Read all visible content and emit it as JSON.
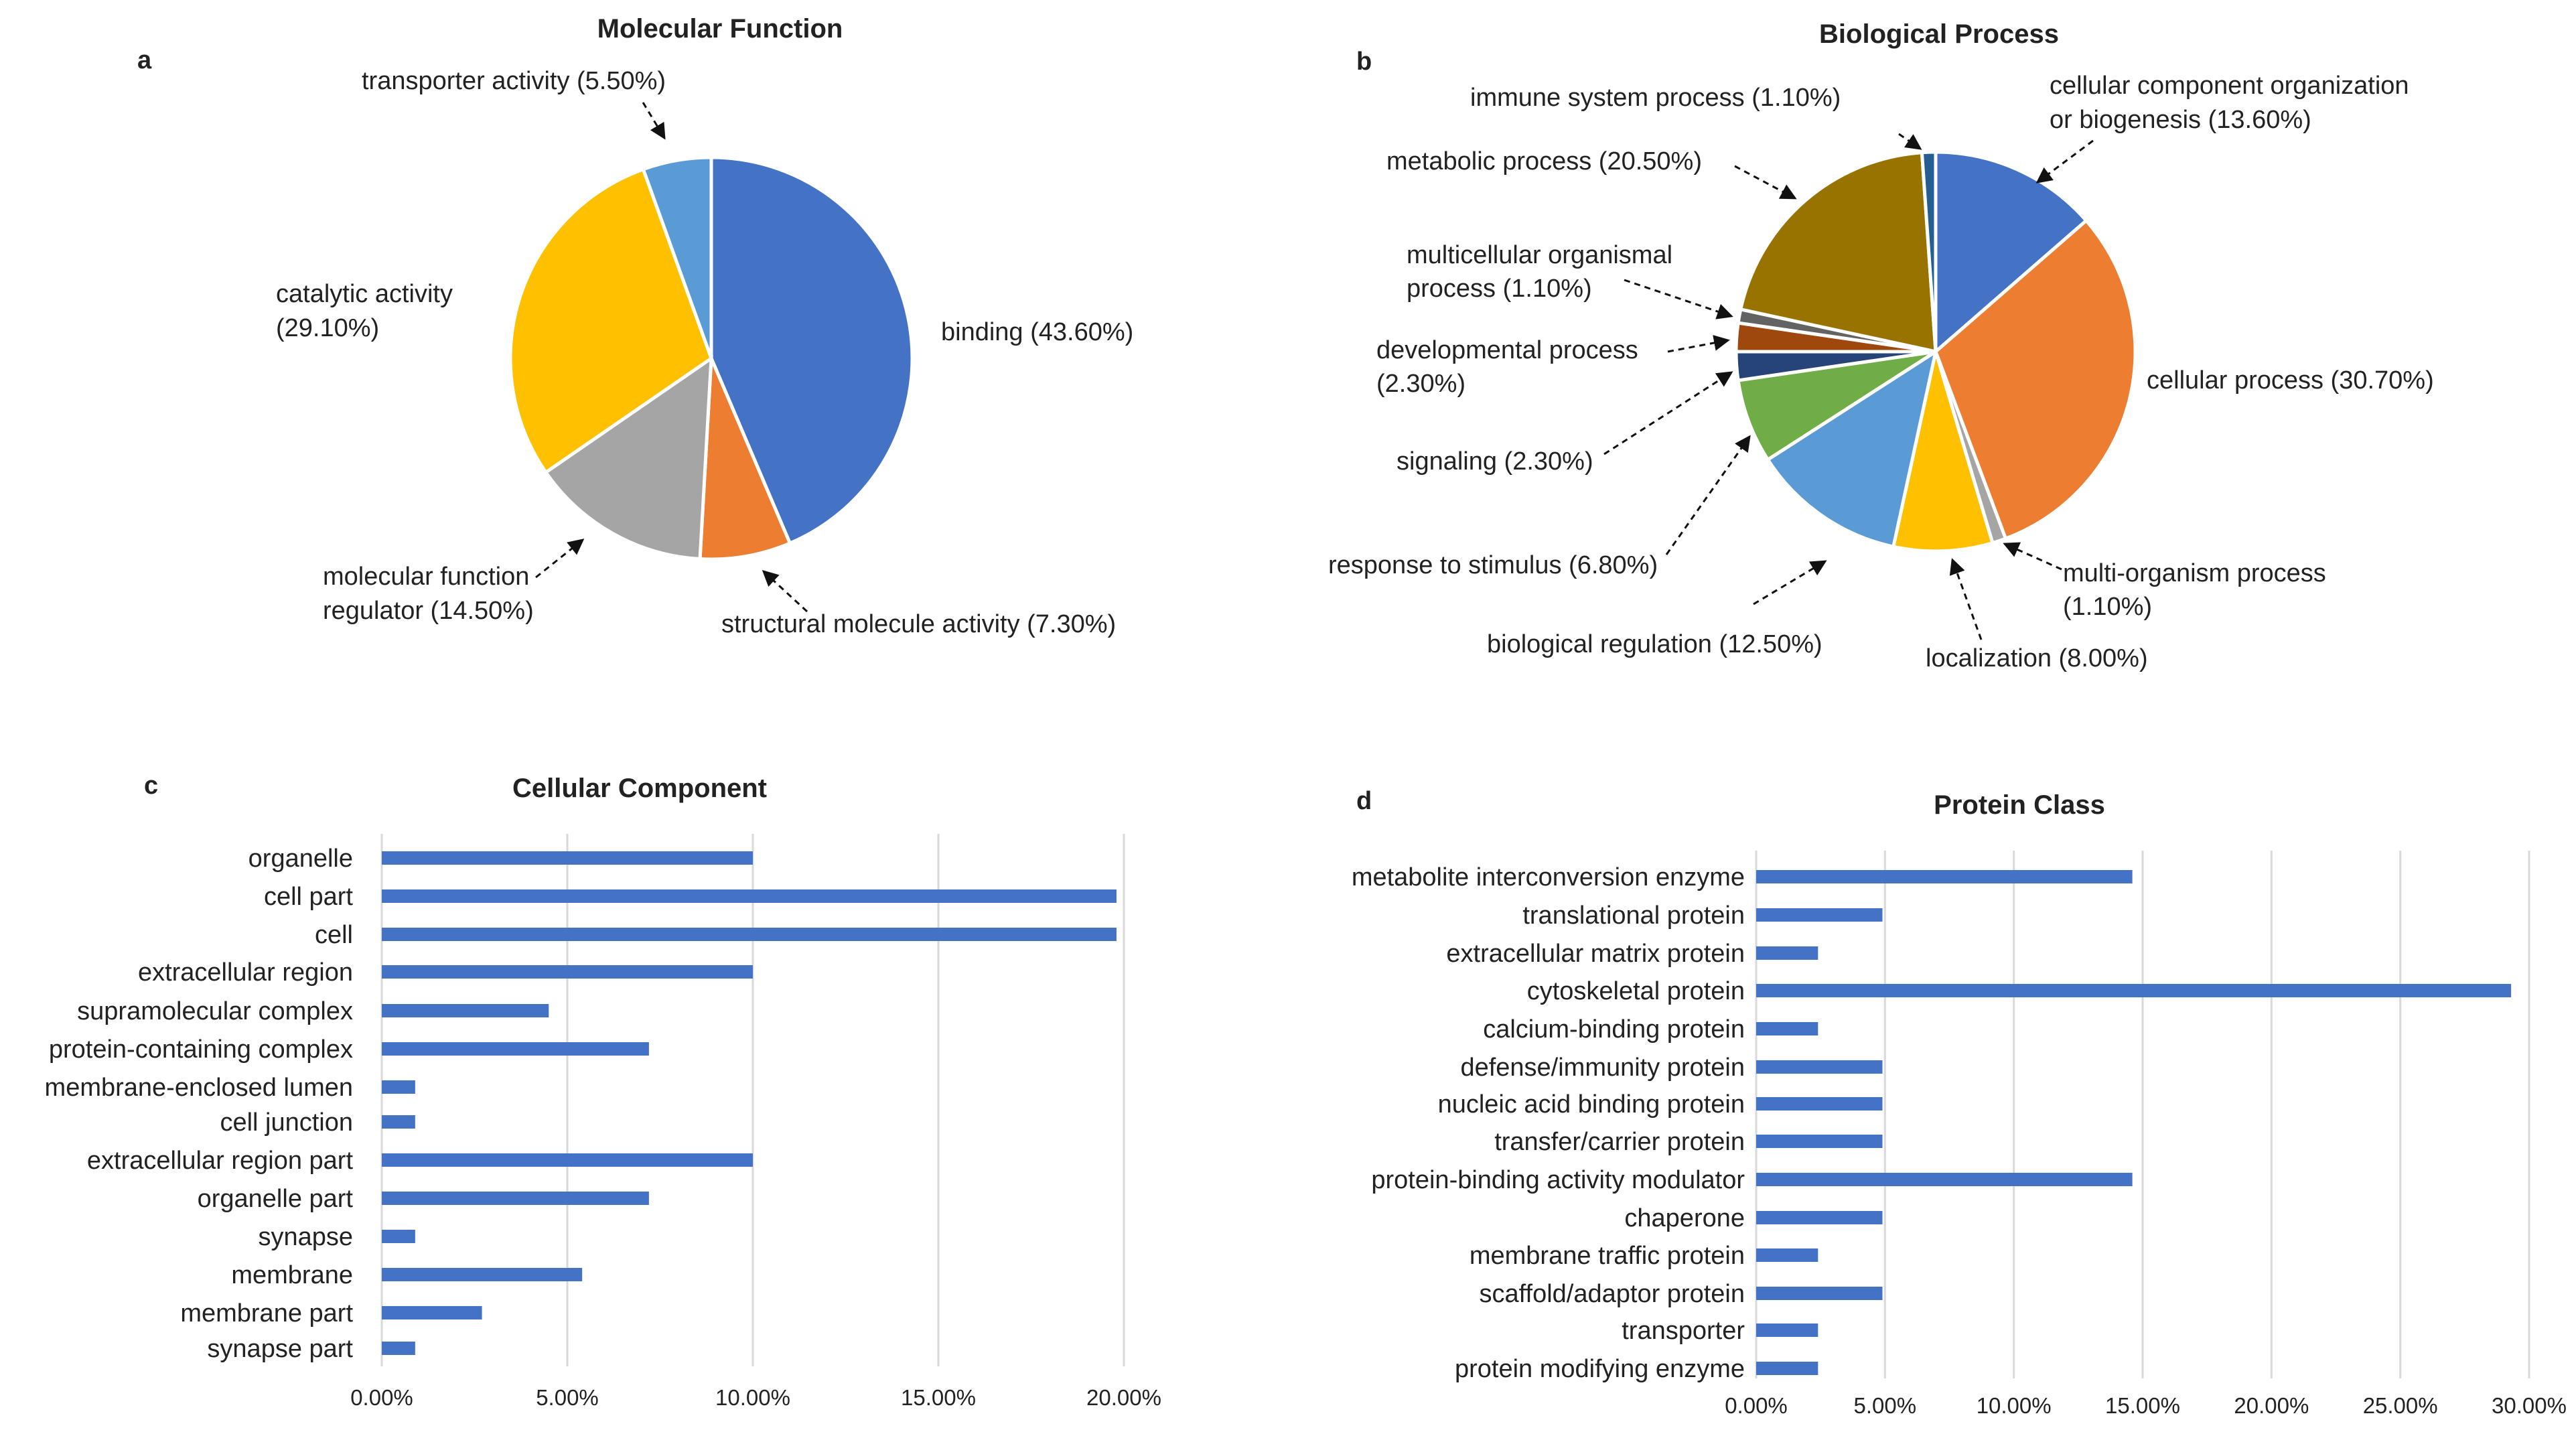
{
  "panels": {
    "a": "a",
    "b": "b",
    "c": "c",
    "d": "d"
  },
  "chart_data": [
    {
      "id": "a",
      "type": "pie",
      "title": "Molecular Function",
      "slices": [
        {
          "label": "binding (43.60%)",
          "value": 43.6,
          "color": "#4472C4"
        },
        {
          "label": "structural molecule activity (7.30%)",
          "value": 7.3,
          "color": "#ED7D31"
        },
        {
          "label": "molecular function regulator (14.50%)",
          "value": 14.5,
          "color": "#A5A5A5"
        },
        {
          "label": "catalytic activity (29.10%)",
          "value": 29.1,
          "color": "#FFC000"
        },
        {
          "label": "transporter activity (5.50%)",
          "value": 5.5,
          "color": "#5B9BD5"
        }
      ]
    },
    {
      "id": "b",
      "type": "pie",
      "title": "Biological Process",
      "slices": [
        {
          "label": "cellular component organization or biogenesis (13.60%)",
          "value": 13.6,
          "color": "#4472C4"
        },
        {
          "label": "cellular process (30.70%)",
          "value": 30.7,
          "color": "#ED7D31"
        },
        {
          "label": "multi-organism process (1.10%)",
          "value": 1.1,
          "color": "#A5A5A5"
        },
        {
          "label": "localization (8.00%)",
          "value": 8.0,
          "color": "#FFC000"
        },
        {
          "label": "biological regulation (12.50%)",
          "value": 12.5,
          "color": "#5B9BD5"
        },
        {
          "label": "response to stimulus (6.80%)",
          "value": 6.8,
          "color": "#70AD47"
        },
        {
          "label": "signaling (2.30%)",
          "value": 2.3,
          "color": "#264478"
        },
        {
          "label": "developmental process (2.30%)",
          "value": 2.3,
          "color": "#9E480E"
        },
        {
          "label": "multicellular organismal process (1.10%)",
          "value": 1.1,
          "color": "#636363"
        },
        {
          "label": "metabolic process (20.50%)",
          "value": 20.5,
          "color": "#997300"
        },
        {
          "label": "immune system process (1.10%)",
          "value": 1.1,
          "color": "#255E91"
        }
      ]
    },
    {
      "id": "c",
      "type": "bar",
      "orientation": "horizontal",
      "title": "Cellular Component",
      "categories": [
        "organelle",
        "cell part",
        "cell",
        "extracellular region",
        "supramolecular complex",
        "protein-containing complex",
        "membrane-enclosed lumen",
        "cell junction",
        "extracellular region part",
        "organelle part",
        "synapse",
        "membrane",
        "membrane part",
        "synapse part"
      ],
      "values": [
        10.0,
        19.8,
        19.8,
        10.0,
        4.5,
        7.2,
        0.9,
        0.9,
        10.0,
        7.2,
        0.9,
        5.4,
        2.7,
        0.9
      ],
      "ticks": [
        "0.00%",
        "5.00%",
        "10.00%",
        "15.00%",
        "20.00%"
      ],
      "xlim": [
        0,
        20
      ],
      "grid": true,
      "bar_color": "#4472C4"
    },
    {
      "id": "d",
      "type": "bar",
      "orientation": "horizontal",
      "title": "Protein Class",
      "categories": [
        "metabolite interconversion enzyme",
        "translational protein",
        "extracellular matrix protein",
        "cytoskeletal protein",
        "calcium-binding protein",
        "defense/immunity protein",
        "nucleic acid binding protein",
        "transfer/carrier protein",
        "protein-binding activity modulator",
        "chaperone",
        "membrane traffic protein",
        "scaffold/adaptor protein",
        "transporter",
        "protein modifying enzyme"
      ],
      "values": [
        14.6,
        4.9,
        2.4,
        29.3,
        2.4,
        4.9,
        4.9,
        4.9,
        14.6,
        4.9,
        2.4,
        4.9,
        2.4,
        2.4
      ],
      "ticks": [
        "0.00%",
        "5.00%",
        "10.00%",
        "15.00%",
        "20.00%",
        "25.00%",
        "30.00%"
      ],
      "xlim": [
        0,
        30
      ],
      "grid": true,
      "bar_color": "#4472C4"
    }
  ]
}
